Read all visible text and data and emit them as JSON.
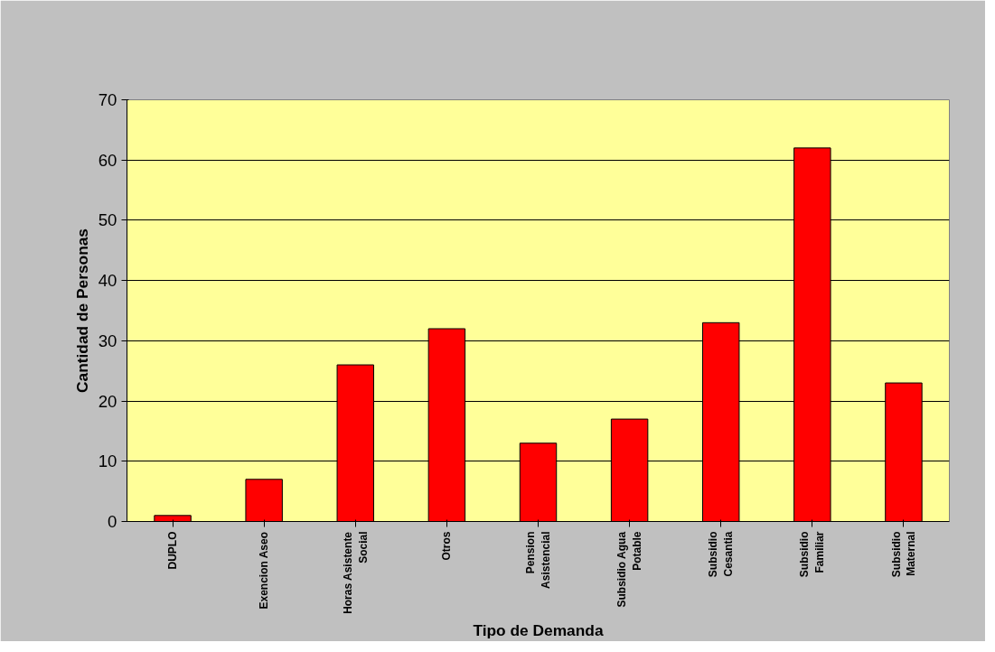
{
  "chart_data": {
    "type": "bar",
    "xlabel": "Tipo de Demanda",
    "ylabel": "Cantidad de Personas",
    "categories": [
      "DUPLO",
      "Exencion Aseo",
      "Horas Asistente Social",
      "Otros",
      "Pension Asistencial",
      "Subsidio Agua Potable",
      "Subsidio Cesantia",
      "Subsidio Familiar",
      "Subsidio Maternal"
    ],
    "values": [
      1,
      7,
      26,
      32,
      13,
      17,
      33,
      62,
      23
    ],
    "color": "#ff0000",
    "ylim": [
      0,
      70
    ],
    "yticks": [
      0,
      10,
      20,
      30,
      40,
      50,
      60,
      70
    ],
    "grid": "y"
  }
}
